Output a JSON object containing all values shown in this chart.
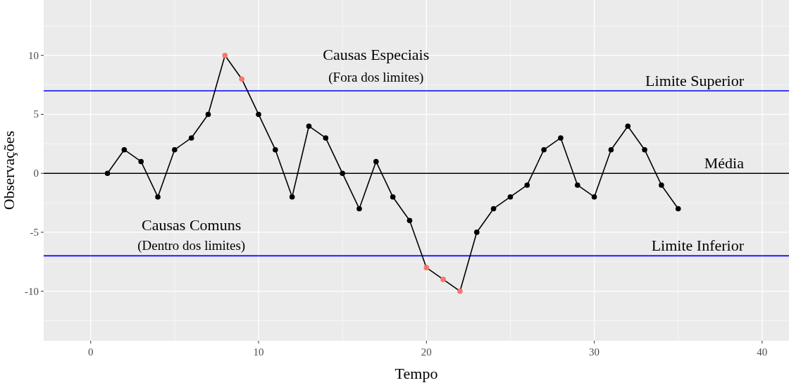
{
  "chart_data": {
    "type": "line",
    "xlabel": "Tempo",
    "ylabel": "Observações",
    "x": [
      1,
      2,
      3,
      4,
      5,
      6,
      7,
      8,
      9,
      10,
      11,
      12,
      13,
      14,
      15,
      16,
      17,
      18,
      19,
      20,
      21,
      22,
      23,
      24,
      25,
      26,
      27,
      28,
      29,
      30,
      31,
      32,
      33,
      34,
      35
    ],
    "series": [
      {
        "color": "#000000",
        "colors": [
          "#000000",
          "#000000",
          "#000000",
          "#000000",
          "#000000",
          "#000000",
          "#000000",
          "#f8766d",
          "#f8766d",
          "#000000",
          "#000000",
          "#000000",
          "#000000",
          "#000000",
          "#000000",
          "#000000",
          "#000000",
          "#000000",
          "#000000",
          "#f8766d",
          "#f8766d",
          "#f8766d",
          "#000000",
          "#000000",
          "#000000",
          "#000000",
          "#000000",
          "#000000",
          "#000000",
          "#000000",
          "#000000",
          "#000000",
          "#000000",
          "#000000",
          "#000000"
        ],
        "values": [
          0,
          2,
          1,
          -2,
          2,
          3,
          5,
          10,
          8,
          5,
          2,
          -2,
          4,
          3,
          0,
          -3,
          1,
          -2,
          -4,
          -8,
          -9,
          -10,
          -5,
          -3,
          -2,
          -1,
          2,
          3,
          -1,
          -2,
          2,
          4,
          2,
          -1,
          -3
        ]
      }
    ],
    "xlim": [
      -2.8,
      41.6
    ],
    "ylim": [
      -14.2,
      14.7
    ],
    "xticks": [
      0,
      10,
      20,
      30,
      40
    ],
    "yticks": [
      -10,
      -5,
      0,
      5,
      10
    ],
    "grid": true,
    "marker": "circle",
    "line_style": "solid",
    "ref_lines": [
      {
        "axis": "y",
        "value": 7,
        "label": "Limite Superior",
        "color": "#0000ff"
      },
      {
        "axis": "y",
        "value": 0,
        "label": "Média",
        "color": "#000000"
      },
      {
        "axis": "y",
        "value": -7,
        "label": "Limite Inferior",
        "color": "#0000ff"
      }
    ],
    "annotations": [
      "Causas Especiais",
      "(Fora dos limites)",
      "Causas Comuns",
      "(Dentro dos limites)"
    ]
  }
}
